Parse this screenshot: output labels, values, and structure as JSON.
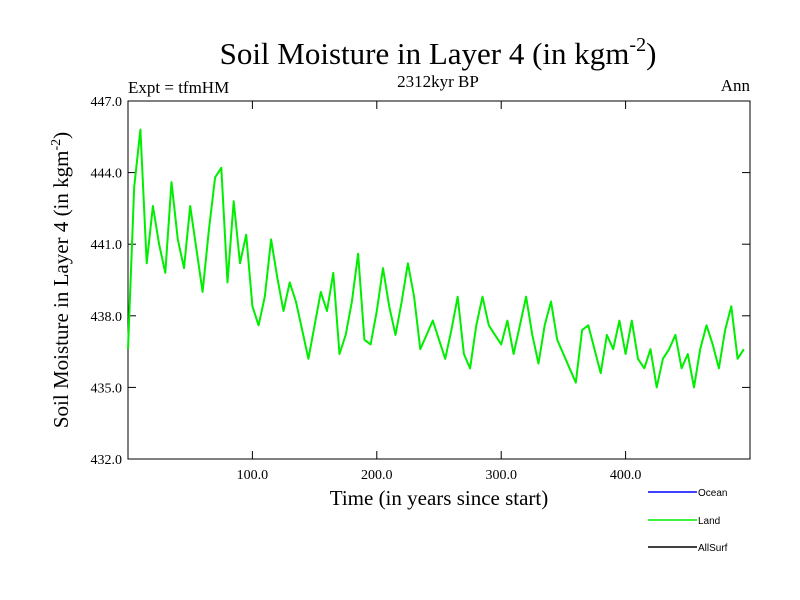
{
  "chart_data": {
    "type": "line",
    "title": "Soil Moisture in Layer 4 (in kgm",
    "title_sup": "-2",
    "title_close": ")",
    "subtitle": "2312kyr BP",
    "left_label": "Expt = tfmHM",
    "right_label": "Ann",
    "xlabel": "Time (in years since start)",
    "ylabel": "Soil Moisture in Layer 4 (in kgm",
    "ylabel_sup": "-2",
    "ylabel_close": ")",
    "xlim": [
      0,
      500
    ],
    "ylim": [
      432.0,
      447.0
    ],
    "x_ticks": [
      100,
      200,
      300,
      400
    ],
    "x_tick_labels": [
      "100.0",
      "200.0",
      "300.0",
      "400.0"
    ],
    "y_ticks": [
      432,
      435,
      438,
      441,
      444,
      447
    ],
    "y_tick_labels": [
      "432.0",
      "435.0",
      "438.0",
      "441.0",
      "444.0",
      "447.0"
    ],
    "legend": [
      {
        "name": "Ocean",
        "color": "#0000ff"
      },
      {
        "name": "Land",
        "color": "#00ee00"
      },
      {
        "name": "AllSurf",
        "color": "#000000"
      }
    ],
    "series": [
      {
        "name": "Land",
        "color": "#00ee00",
        "x_start": 0,
        "x_step": 5,
        "values": [
          436.6,
          443.4,
          445.8,
          440.2,
          442.6,
          441.0,
          439.8,
          443.6,
          441.2,
          440.0,
          442.6,
          440.8,
          439.0,
          441.6,
          443.8,
          444.2,
          439.4,
          442.8,
          440.2,
          441.4,
          438.4,
          437.6,
          438.8,
          441.2,
          439.6,
          438.2,
          439.4,
          438.6,
          437.4,
          436.2,
          437.6,
          439.0,
          438.2,
          439.8,
          436.4,
          437.2,
          438.6,
          440.6,
          437.0,
          436.8,
          438.2,
          440.0,
          438.4,
          437.2,
          438.6,
          440.2,
          438.8,
          436.6,
          437.2,
          437.8,
          437.0,
          436.2,
          437.4,
          438.8,
          436.4,
          435.8,
          437.6,
          438.8,
          437.6,
          437.2,
          436.8,
          437.8,
          436.4,
          437.6,
          438.8,
          437.2,
          436.0,
          437.6,
          438.6,
          437.0,
          436.4,
          435.8,
          435.2,
          437.4,
          437.6,
          436.6,
          435.6,
          437.2,
          436.6,
          437.8,
          436.4,
          437.8,
          436.2,
          435.8,
          436.6,
          435.0,
          436.2,
          436.6,
          437.2,
          435.8,
          436.4,
          435.0,
          436.6,
          437.6,
          436.8,
          435.8,
          437.4,
          438.4,
          436.2,
          436.6
        ]
      }
    ]
  }
}
